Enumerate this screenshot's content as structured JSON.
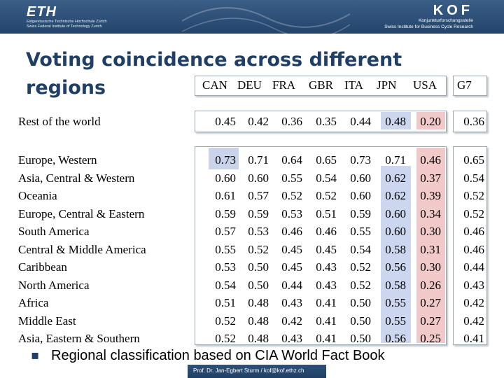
{
  "header": {
    "left_logo": "ETH",
    "left_sub_line1": "Eidgenössische Technische Hochschule Zürich",
    "left_sub_line2": "Swiss Federal Institute of Technology Zurich",
    "right_logo": "KOF",
    "right_sub_line1": "Konjunkturforschungsstelle",
    "right_sub_line2": "Swiss Institute for Business Cycle Research"
  },
  "title_line1": "Voting coincidence across different",
  "title_line2": "regions",
  "table": {
    "columns": [
      "CAN",
      "DEU",
      "FRA",
      "GBR",
      "ITA",
      "JPN",
      "USA"
    ],
    "g7_label": "G7",
    "rest_row": {
      "label": "Rest of the world",
      "values": [
        "0.45",
        "0.42",
        "0.36",
        "0.35",
        "0.44",
        "0.48",
        "0.20"
      ],
      "g7": "0.36"
    },
    "rows": [
      {
        "label": "Europe, Western",
        "values": [
          "0.73",
          "0.71",
          "0.64",
          "0.65",
          "0.73",
          "0.71",
          "0.46"
        ],
        "g7": "0.65"
      },
      {
        "label": "Asia, Central & Western",
        "values": [
          "0.60",
          "0.60",
          "0.55",
          "0.54",
          "0.60",
          "0.62",
          "0.37"
        ],
        "g7": "0.54"
      },
      {
        "label": "Oceania",
        "values": [
          "0.61",
          "0.57",
          "0.52",
          "0.52",
          "0.60",
          "0.62",
          "0.39"
        ],
        "g7": "0.52"
      },
      {
        "label": "Europe, Central & Eastern",
        "values": [
          "0.59",
          "0.59",
          "0.53",
          "0.51",
          "0.59",
          "0.60",
          "0.34"
        ],
        "g7": "0.52"
      },
      {
        "label": "South America",
        "values": [
          "0.57",
          "0.53",
          "0.46",
          "0.46",
          "0.55",
          "0.60",
          "0.30"
        ],
        "g7": "0.46"
      },
      {
        "label": "Central & Middle America",
        "values": [
          "0.55",
          "0.52",
          "0.45",
          "0.45",
          "0.54",
          "0.58",
          "0.31"
        ],
        "g7": "0.46"
      },
      {
        "label": "Caribbean",
        "values": [
          "0.53",
          "0.50",
          "0.45",
          "0.43",
          "0.52",
          "0.56",
          "0.30"
        ],
        "g7": "0.44"
      },
      {
        "label": "North America",
        "values": [
          "0.54",
          "0.50",
          "0.44",
          "0.43",
          "0.52",
          "0.58",
          "0.26"
        ],
        "g7": "0.43"
      },
      {
        "label": "Africa",
        "values": [
          "0.51",
          "0.48",
          "0.43",
          "0.41",
          "0.50",
          "0.55",
          "0.27"
        ],
        "g7": "0.42"
      },
      {
        "label": "Middle East",
        "values": [
          "0.52",
          "0.48",
          "0.42",
          "0.41",
          "0.50",
          "0.55",
          "0.27"
        ],
        "g7": "0.42"
      },
      {
        "label": "Asia, Eastern & Southern",
        "values": [
          "0.52",
          "0.48",
          "0.43",
          "0.41",
          "0.50",
          "0.56",
          "0.25"
        ],
        "g7": "0.41"
      }
    ]
  },
  "bullet_text": "Regional classification based on CIA World Fact Book",
  "footer_text": "Prof. Dr. Jan-Egbert Sturm / kof@kof.ethz.ch",
  "colors": {
    "banner": "#2d4f77",
    "title": "#1f3f66",
    "jpn_highlight": "#ccd6ef",
    "usa_highlight": "#f2c9c9",
    "can_highlight": "#c9d3ea"
  }
}
